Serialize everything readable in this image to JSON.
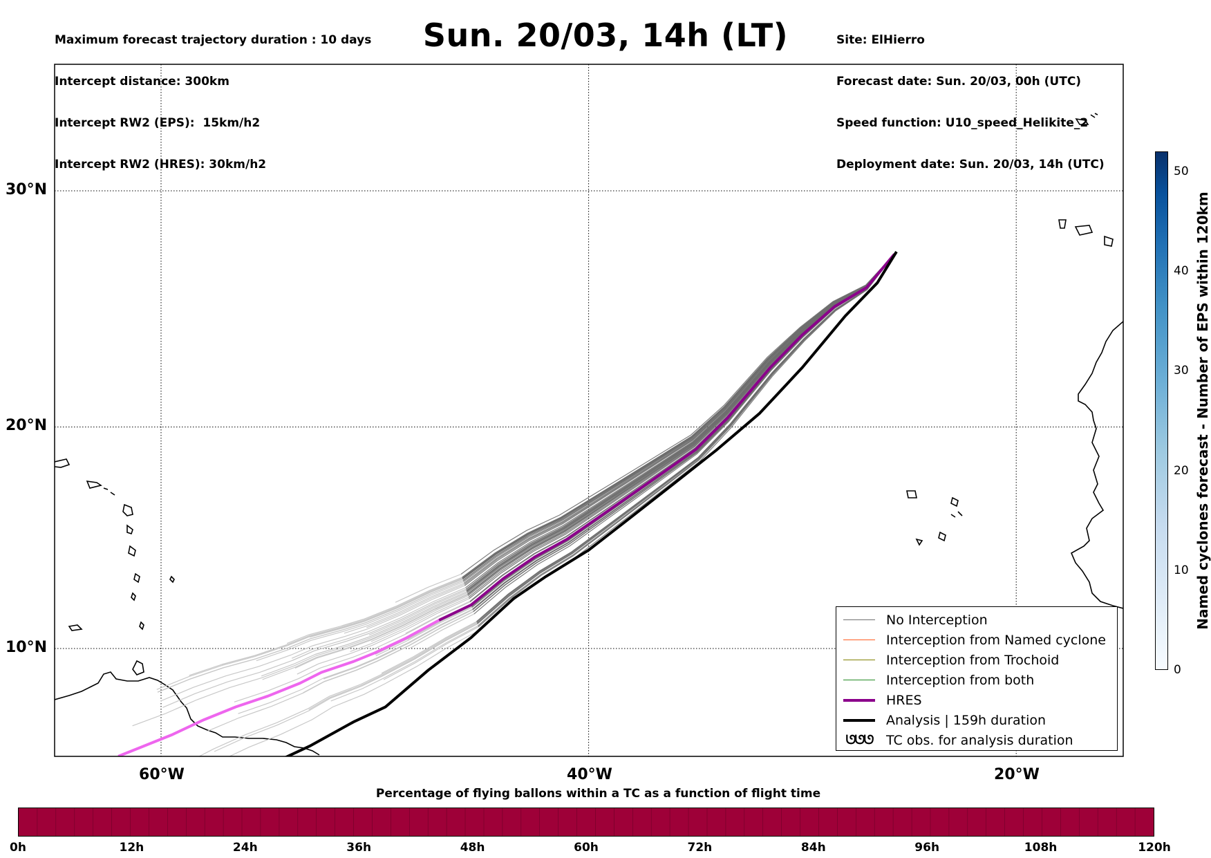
{
  "header": {
    "title": "Sun. 20/03, 14h (LT)",
    "left_info": [
      "Maximum forecast trajectory duration : 10 days",
      "Intercept distance: 300km",
      "Intercept RW2 (EPS):  15km/h2",
      "Intercept RW2 (HRES): 30km/h2"
    ],
    "right_info": [
      "Site: ElHierro",
      "Forecast date: Sun. 20/03, 00h (UTC)",
      "Speed function: U10_speed_Helikite_2",
      "Deployment date: Sun. 20/03, 14h (UTC)"
    ]
  },
  "map": {
    "lat_labels": [
      "30°N",
      "20°N",
      "10°N"
    ],
    "lon_labels": [
      "60°W",
      "40°W",
      "20°W"
    ],
    "gridlines": "dotted",
    "colors": {
      "no_interception": "#6e6e6e",
      "no_interception_late": "#c8c8c8",
      "named_cyclone": "#ff5a1e",
      "trochoid": "#808000",
      "both": "#228b22",
      "hres": "#8b008b",
      "hres_late": "#ee66ee",
      "analysis": "#000000",
      "coast": "#000000"
    }
  },
  "legend": {
    "items": [
      {
        "label": "No Interception",
        "symbol": "thin-gray-line"
      },
      {
        "label": "Interception from Named cyclone",
        "symbol": "thin-orange-line"
      },
      {
        "label": "Interception from Trochoid",
        "symbol": "thin-olive-line"
      },
      {
        "label": "Interception from both",
        "symbol": "thin-green-line"
      },
      {
        "label": "HRES",
        "symbol": "thick-purple-line"
      },
      {
        "label": "Analysis | 159h duration",
        "symbol": "thick-black-line"
      },
      {
        "label": "TC obs. for analysis duration",
        "symbol": "tc-symbols",
        "symbol_text": "ᘎᘎᘎ"
      }
    ]
  },
  "colorbar": {
    "label": "Named cyclones forecast - Number of EPS within 120km",
    "ticks": [
      "0",
      "10",
      "20",
      "30",
      "40",
      "50"
    ],
    "range": [
      0,
      52
    ],
    "colormap": "Blues"
  },
  "timebar": {
    "title": "Percentage of flying ballons within a TC as a function of flight time",
    "ticks": [
      "0h",
      "12h",
      "24h",
      "36h",
      "48h",
      "60h",
      "72h",
      "84h",
      "96h",
      "108h",
      "120h"
    ],
    "fill_color": "#9e0038",
    "values_percent": [
      0,
      0,
      0,
      0,
      0,
      0,
      0,
      0,
      0,
      0,
      0,
      0,
      0,
      0,
      0,
      0,
      0,
      0,
      0,
      0,
      0,
      0,
      0,
      0,
      0,
      0,
      0,
      0,
      0,
      0,
      0,
      0,
      0,
      0,
      0,
      0,
      0,
      0,
      0,
      0,
      0,
      0,
      0,
      0,
      0,
      0,
      0,
      0,
      0,
      0,
      0,
      0,
      0,
      0,
      0,
      0,
      0,
      0,
      0,
      0,
      0
    ]
  },
  "tracks": {
    "hres": [
      [
        -25.7,
        27.4
      ],
      [
        -27.0,
        26.0
      ],
      [
        -28.5,
        25.2
      ],
      [
        -30.0,
        24.0
      ],
      [
        -31.5,
        22.6
      ],
      [
        -33.5,
        20.4
      ],
      [
        -35.0,
        19.0
      ],
      [
        -36.5,
        18.0
      ],
      [
        -38.0,
        17.0
      ],
      [
        -39.5,
        16.0
      ],
      [
        -41.0,
        15.0
      ],
      [
        -42.5,
        14.2
      ],
      [
        -44.0,
        13.2
      ],
      [
        -45.5,
        12.0
      ],
      [
        -47.0,
        11.3
      ],
      [
        -48.5,
        10.5
      ],
      [
        -50.0,
        9.8
      ],
      [
        -51.0,
        9.4
      ],
      [
        -52.5,
        8.9
      ],
      [
        -53.5,
        8.4
      ],
      [
        -55.0,
        7.8
      ],
      [
        -56.5,
        7.3
      ],
      [
        -58.0,
        6.7
      ],
      [
        -59.5,
        6.0
      ],
      [
        -61.0,
        5.4
      ],
      [
        -62.0,
        5.0
      ]
    ],
    "analysis": [
      [
        -25.6,
        27.5
      ],
      [
        -26.5,
        26.2
      ],
      [
        -28.0,
        24.8
      ],
      [
        -30.0,
        22.6
      ],
      [
        -32.0,
        20.6
      ],
      [
        -34.0,
        19.0
      ],
      [
        -36.0,
        17.5
      ],
      [
        -38.0,
        16.0
      ],
      [
        -40.0,
        14.5
      ],
      [
        -42.0,
        13.3
      ],
      [
        -43.5,
        12.3
      ],
      [
        -45.5,
        10.5
      ],
      [
        -47.5,
        9.0
      ],
      [
        -49.5,
        7.3
      ],
      [
        -51.0,
        6.6
      ],
      [
        -53.0,
        5.5
      ],
      [
        -54.5,
        4.8
      ],
      [
        -55.5,
        4.3
      ],
      [
        -56.5,
        3.8
      ]
    ],
    "ensemble_count": 50
  }
}
